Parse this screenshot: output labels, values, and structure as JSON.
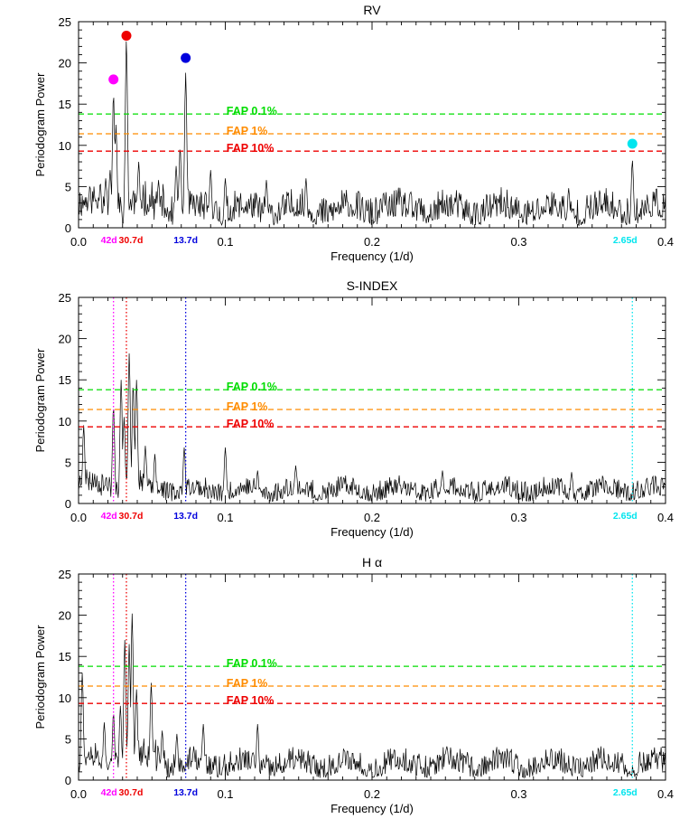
{
  "chart_data": [
    {
      "type": "line",
      "title": "RV",
      "xlabel": "Frequency (1/d)",
      "ylabel": "Periodogram Power",
      "xlim": [
        0.0,
        0.4
      ],
      "ylim": [
        0,
        25
      ],
      "xticks": [
        "0.0",
        "0.1",
        "0.2",
        "0.3",
        "0.4"
      ],
      "yticks": [
        "0",
        "5",
        "10",
        "15",
        "20",
        "25"
      ],
      "fap_lines": [
        {
          "label": "FAP 0.1%",
          "value": 13.8,
          "color": "#00dd00"
        },
        {
          "label": "FAP 1%",
          "value": 11.4,
          "color": "#ff8c00"
        },
        {
          "label": "FAP 10%",
          "value": 9.3,
          "color": "#ee0000"
        }
      ],
      "period_labels": [
        {
          "text": "42d",
          "x": 0.0238,
          "color": "#ff00ff"
        },
        {
          "text": "30.7d",
          "x": 0.0326,
          "color": "#ee0000"
        },
        {
          "text": "13.7d",
          "x": 0.073,
          "color": "#0000dd"
        },
        {
          "text": "2.65d",
          "x": 0.3774,
          "color": "#00e5ee"
        }
      ],
      "markers": [
        {
          "x": 0.0238,
          "y": 18.0,
          "color": "#ff00ff"
        },
        {
          "x": 0.0326,
          "y": 23.3,
          "color": "#ee0000"
        },
        {
          "x": 0.073,
          "y": 20.6,
          "color": "#0000dd"
        },
        {
          "x": 0.3774,
          "y": 10.2,
          "color": "#00e5ee"
        }
      ],
      "peaks": [
        [
          0.0238,
          16.3
        ],
        [
          0.0326,
          22.8
        ],
        [
          0.073,
          18.8
        ],
        [
          0.0692,
          9.8
        ],
        [
          0.0665,
          7.5
        ],
        [
          0.0255,
          12.5
        ],
        [
          0.041,
          8.0
        ],
        [
          0.0215,
          7.0
        ],
        [
          0.0185,
          6.0
        ],
        [
          0.0148,
          5.5
        ],
        [
          0.0545,
          5.8
        ],
        [
          0.09,
          7.0
        ],
        [
          0.1,
          6.0
        ],
        [
          0.128,
          5.8
        ],
        [
          0.155,
          6.0
        ],
        [
          0.208,
          4.2
        ],
        [
          0.232,
          3.6
        ],
        [
          0.32,
          3.8
        ],
        [
          0.334,
          4.8
        ],
        [
          0.3774,
          8.2
        ]
      ],
      "series": [
        {
          "baseline": 1.4,
          "noise": 1.6,
          "seed": 11
        }
      ]
    },
    {
      "type": "line",
      "title": "S-INDEX",
      "xlabel": "Frequency (1/d)",
      "ylabel": "Periodogram Power",
      "xlim": [
        0.0,
        0.4
      ],
      "ylim": [
        0,
        25
      ],
      "xticks": [
        "0.0",
        "0.1",
        "0.2",
        "0.3",
        "0.4"
      ],
      "yticks": [
        "0",
        "5",
        "10",
        "15",
        "20",
        "25"
      ],
      "fap_lines": [
        {
          "label": "FAP 0.1%",
          "value": 13.8,
          "color": "#00dd00"
        },
        {
          "label": "FAP 1%",
          "value": 11.4,
          "color": "#ff8c00"
        },
        {
          "label": "FAP 10%",
          "value": 9.3,
          "color": "#ee0000"
        }
      ],
      "period_labels": [
        {
          "text": "42d",
          "x": 0.0238,
          "color": "#ff00ff"
        },
        {
          "text": "30.7d",
          "x": 0.0326,
          "color": "#ee0000"
        },
        {
          "text": "13.7d",
          "x": 0.073,
          "color": "#0000dd"
        },
        {
          "text": "2.65d",
          "x": 0.3774,
          "color": "#00e5ee"
        }
      ],
      "period_lines": [
        {
          "x": 0.0238,
          "color": "#ff00ff"
        },
        {
          "x": 0.0326,
          "color": "#ee0000"
        },
        {
          "x": 0.073,
          "color": "#0000dd"
        },
        {
          "x": 0.3774,
          "color": "#00e5ee"
        }
      ],
      "peaks": [
        [
          0.0035,
          9.5
        ],
        [
          0.0238,
          11.8
        ],
        [
          0.029,
          15.0
        ],
        [
          0.0345,
          18.2
        ],
        [
          0.0372,
          14.5
        ],
        [
          0.0395,
          15.0
        ],
        [
          0.031,
          10.5
        ],
        [
          0.0455,
          7.0
        ],
        [
          0.052,
          6.0
        ],
        [
          0.072,
          6.8
        ],
        [
          0.1,
          6.8
        ],
        [
          0.122,
          4.0
        ],
        [
          0.148,
          4.6
        ],
        [
          0.248,
          4.0
        ],
        [
          0.336,
          3.8
        ],
        [
          0.388,
          1.5
        ]
      ],
      "series": [
        {
          "baseline": 1.1,
          "noise": 1.1,
          "seed": 23
        }
      ]
    },
    {
      "type": "line",
      "title": "H α",
      "xlabel": "Frequency (1/d)",
      "ylabel": "Periodogram Power",
      "xlim": [
        0.0,
        0.4
      ],
      "ylim": [
        0,
        25
      ],
      "xticks": [
        "0.0",
        "0.1",
        "0.2",
        "0.3",
        "0.4"
      ],
      "yticks": [
        "0",
        "5",
        "10",
        "15",
        "20",
        "25"
      ],
      "fap_lines": [
        {
          "label": "FAP 0.1%",
          "value": 13.8,
          "color": "#00dd00"
        },
        {
          "label": "FAP 1%",
          "value": 11.4,
          "color": "#ff8c00"
        },
        {
          "label": "FAP 10%",
          "value": 9.3,
          "color": "#ee0000"
        }
      ],
      "period_labels": [
        {
          "text": "42d",
          "x": 0.0238,
          "color": "#ff00ff"
        },
        {
          "text": "30.7d",
          "x": 0.0326,
          "color": "#ee0000"
        },
        {
          "text": "13.7d",
          "x": 0.073,
          "color": "#0000dd"
        },
        {
          "text": "2.65d",
          "x": 0.3774,
          "color": "#00e5ee"
        }
      ],
      "period_lines": [
        {
          "x": 0.0238,
          "color": "#ff00ff"
        },
        {
          "x": 0.0326,
          "color": "#ee0000"
        },
        {
          "x": 0.073,
          "color": "#0000dd"
        },
        {
          "x": 0.3774,
          "color": "#00e5ee"
        }
      ],
      "peaks": [
        [
          0.0025,
          13.0
        ],
        [
          0.0238,
          8.2
        ],
        [
          0.0315,
          17.0
        ],
        [
          0.0365,
          20.2
        ],
        [
          0.0345,
          16.5
        ],
        [
          0.0395,
          11.0
        ],
        [
          0.0495,
          11.8
        ],
        [
          0.0285,
          9.0
        ],
        [
          0.0175,
          7.0
        ],
        [
          0.057,
          6.0
        ],
        [
          0.067,
          5.6
        ],
        [
          0.085,
          6.8
        ],
        [
          0.122,
          6.8
        ],
        [
          0.232,
          3.2
        ],
        [
          0.265,
          3.4
        ],
        [
          0.298,
          3.2
        ],
        [
          0.322,
          3.8
        ]
      ],
      "series": [
        {
          "baseline": 1.3,
          "noise": 1.3,
          "seed": 37
        }
      ]
    }
  ]
}
